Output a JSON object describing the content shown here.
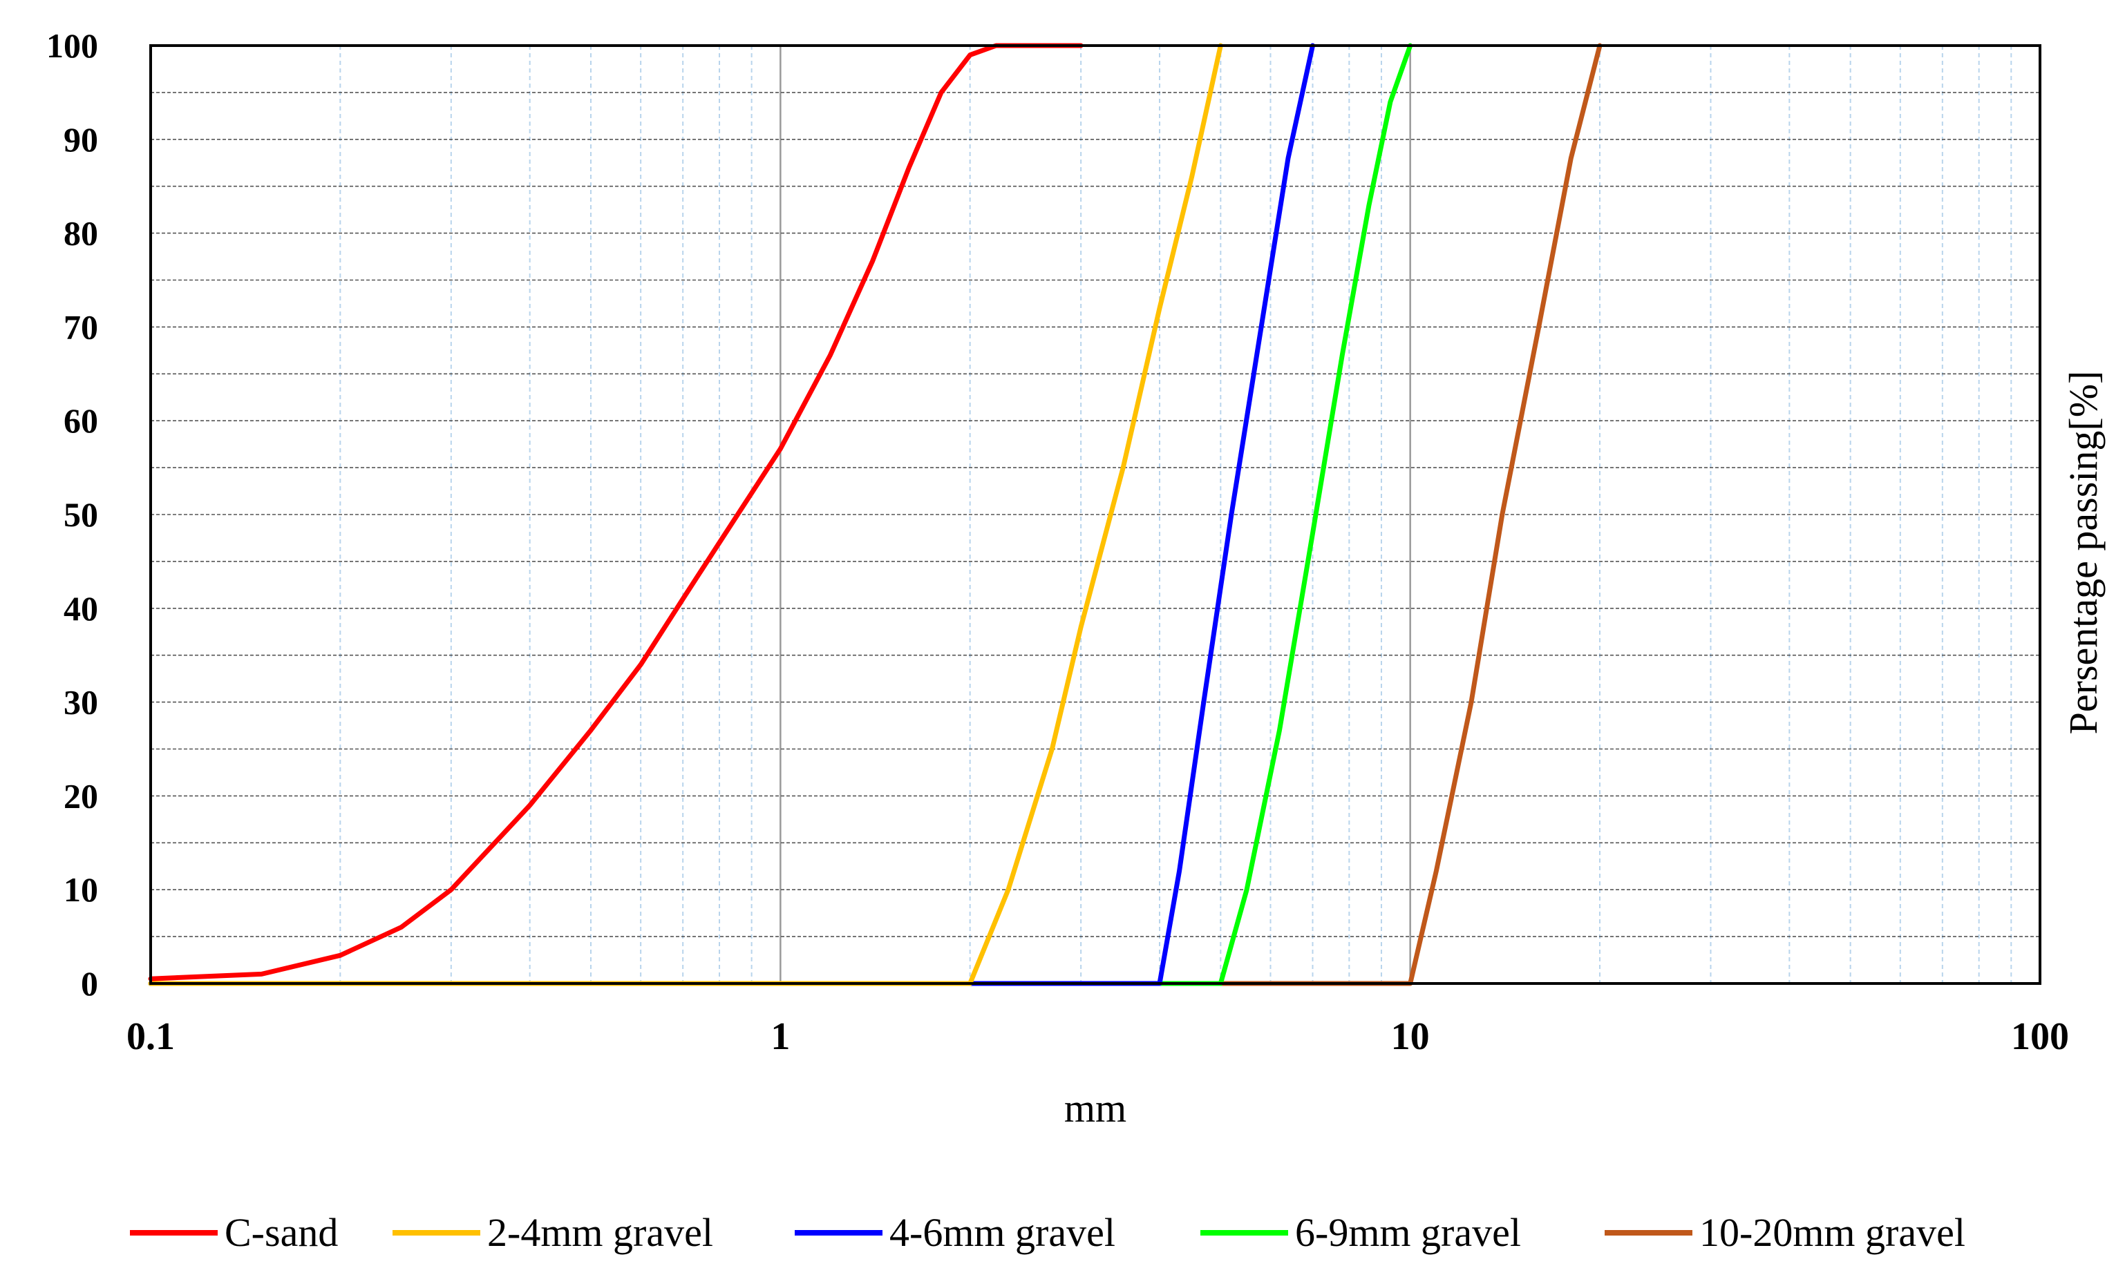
{
  "chart_data": {
    "type": "line",
    "xscale": "log",
    "xlim": [
      0.1,
      100
    ],
    "ylim": [
      0,
      100
    ],
    "xlabel": "mm",
    "ylabel": "Persentage passing[%]",
    "grid": true,
    "legend_position": "bottom",
    "x_ticks": [
      "0.1",
      "1",
      "10",
      "100"
    ],
    "y_ticks": [
      "0",
      "10",
      "20",
      "30",
      "40",
      "50",
      "60",
      "70",
      "80",
      "90",
      "100"
    ],
    "series": [
      {
        "name": "C-sand",
        "color": "#ff0000",
        "points": [
          [
            0.1,
            0.5
          ],
          [
            0.15,
            1
          ],
          [
            0.2,
            3
          ],
          [
            0.25,
            6
          ],
          [
            0.3,
            10
          ],
          [
            0.4,
            19
          ],
          [
            0.5,
            27
          ],
          [
            0.6,
            34
          ],
          [
            0.7,
            41
          ],
          [
            0.8,
            47
          ],
          [
            1.0,
            57
          ],
          [
            1.2,
            67
          ],
          [
            1.4,
            77
          ],
          [
            1.6,
            87
          ],
          [
            1.8,
            95
          ],
          [
            2.0,
            99
          ],
          [
            2.2,
            100
          ],
          [
            3.0,
            100
          ]
        ]
      },
      {
        "name": "2-4mm gravel",
        "color": "#ffc000",
        "points": [
          [
            0.1,
            0
          ],
          [
            2.0,
            0
          ],
          [
            2.3,
            10
          ],
          [
            2.7,
            25
          ],
          [
            3.0,
            38
          ],
          [
            3.5,
            55
          ],
          [
            4.0,
            72
          ],
          [
            4.5,
            86
          ],
          [
            5.0,
            100
          ]
        ]
      },
      {
        "name": "4-6mm gravel",
        "color": "#0000ff",
        "points": [
          [
            0.1,
            0
          ],
          [
            4.0,
            0
          ],
          [
            4.3,
            12
          ],
          [
            4.7,
            30
          ],
          [
            5.2,
            50
          ],
          [
            5.8,
            70
          ],
          [
            6.4,
            88
          ],
          [
            7.0,
            100
          ]
        ]
      },
      {
        "name": "6-9mm gravel",
        "color": "#00ff00",
        "points": [
          [
            0.1,
            0
          ],
          [
            5.0,
            0
          ],
          [
            5.5,
            10
          ],
          [
            6.2,
            27
          ],
          [
            7.0,
            48
          ],
          [
            7.8,
            67
          ],
          [
            8.6,
            83
          ],
          [
            9.3,
            94
          ],
          [
            10.0,
            100
          ]
        ]
      },
      {
        "name": "10-20mm gravel",
        "color": "#c0581a",
        "points": [
          [
            0.1,
            0
          ],
          [
            10.0,
            0
          ],
          [
            11.0,
            12
          ],
          [
            12.5,
            30
          ],
          [
            14.0,
            50
          ],
          [
            16.0,
            70
          ],
          [
            18.0,
            88
          ],
          [
            20.0,
            100
          ]
        ]
      }
    ]
  }
}
